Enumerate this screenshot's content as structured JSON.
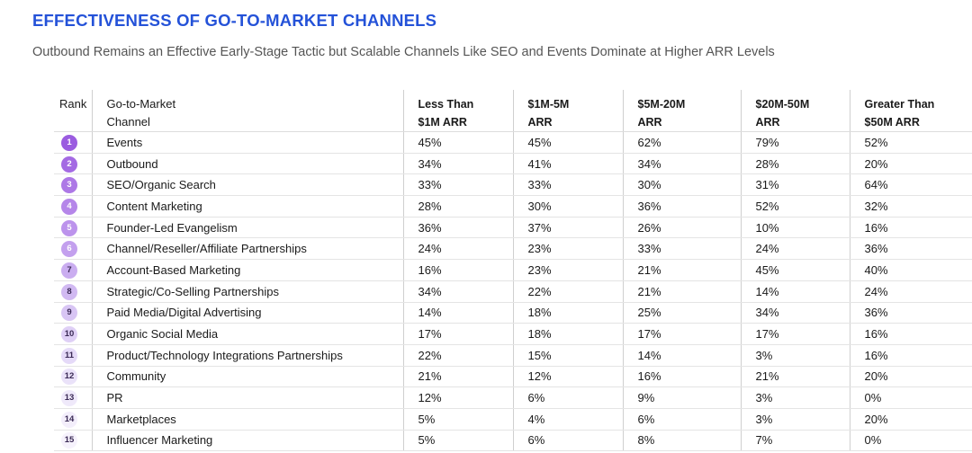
{
  "header": {
    "title": "EFFECTIVENESS OF GO-TO-MARKET CHANNELS",
    "subtitle": "Outbound Remains an Effective Early-Stage Tactic but Scalable Channels Like SEO and Events Dominate at Higher ARR Levels"
  },
  "table": {
    "columns": {
      "rank": "Rank",
      "channel_line1": "Go-to-Market",
      "channel_line2": "Channel",
      "c1_line1": "Less Than",
      "c1_line2": "$1M ARR",
      "c2_line1": "$1M-5M",
      "c2_line2": "ARR",
      "c3_line1": "$5M-20M",
      "c3_line2": "ARR",
      "c4_line1": "$20M-50M",
      "c4_line2": "ARR",
      "c5_line1": "Greater Than",
      "c5_line2": "$50M ARR"
    }
  },
  "chart_data": {
    "type": "table",
    "title": "EFFECTIVENESS OF GO-TO-MARKET CHANNELS",
    "subtitle": "Outbound Remains an Effective Early-Stage Tactic but Scalable Channels Like SEO and Events Dominate at Higher ARR Levels",
    "columns": [
      "Less Than $1M ARR",
      "$1M-5M ARR",
      "$5M-20M ARR",
      "$20M-50M ARR",
      "Greater Than $50M ARR"
    ],
    "rows": [
      {
        "rank": "1",
        "channel": "Events",
        "values": [
          "45%",
          "45%",
          "62%",
          "79%",
          "52%"
        ],
        "badge_color": "#9b5ce0",
        "badge_text_color": "#ffffff"
      },
      {
        "rank": "2",
        "channel": "Outbound",
        "values": [
          "34%",
          "41%",
          "34%",
          "28%",
          "20%"
        ],
        "badge_color": "#a46ae3",
        "badge_text_color": "#ffffff"
      },
      {
        "rank": "3",
        "channel": "SEO/Organic Search",
        "values": [
          "33%",
          "33%",
          "30%",
          "31%",
          "64%"
        ],
        "badge_color": "#ad78e6",
        "badge_text_color": "#ffffff"
      },
      {
        "rank": "4",
        "channel": "Content Marketing",
        "values": [
          "28%",
          "30%",
          "36%",
          "52%",
          "32%"
        ],
        "badge_color": "#b586e9",
        "badge_text_color": "#ffffff"
      },
      {
        "rank": "5",
        "channel": "Founder-Led Evangelism",
        "values": [
          "36%",
          "37%",
          "26%",
          "10%",
          "16%"
        ],
        "badge_color": "#bc93ec",
        "badge_text_color": "#ffffff"
      },
      {
        "rank": "6",
        "channel": "Channel/Reseller/Affiliate Partnerships",
        "values": [
          "24%",
          "23%",
          "33%",
          "24%",
          "36%"
        ],
        "badge_color": "#c3a0ee",
        "badge_text_color": "#ffffff"
      },
      {
        "rank": "7",
        "channel": "Account-Based Marketing",
        "values": [
          "16%",
          "23%",
          "21%",
          "45%",
          "40%"
        ],
        "badge_color": "#caadf0",
        "badge_text_color": "#3a2a55"
      },
      {
        "rank": "8",
        "channel": "Strategic/Co-Selling Partnerships",
        "values": [
          "34%",
          "22%",
          "21%",
          "14%",
          "24%"
        ],
        "badge_color": "#d1b9f2",
        "badge_text_color": "#3a2a55"
      },
      {
        "rank": "9",
        "channel": "Paid Media/Digital Advertising",
        "values": [
          "14%",
          "18%",
          "25%",
          "34%",
          "36%"
        ],
        "badge_color": "#d8c5f4",
        "badge_text_color": "#3a2a55"
      },
      {
        "rank": "10",
        "channel": "Organic Social Media",
        "values": [
          "17%",
          "18%",
          "17%",
          "17%",
          "16%"
        ],
        "badge_color": "#dfd0f6",
        "badge_text_color": "#3a2a55"
      },
      {
        "rank": "11",
        "channel": "Product/Technology Integrations Partnerships",
        "values": [
          "22%",
          "15%",
          "14%",
          "3%",
          "16%"
        ],
        "badge_color": "#e5daf8",
        "badge_text_color": "#3a2a55"
      },
      {
        "rank": "12",
        "channel": "Community",
        "values": [
          "21%",
          "12%",
          "16%",
          "21%",
          "20%"
        ],
        "badge_color": "#eae2f9",
        "badge_text_color": "#3a2a55"
      },
      {
        "rank": "13",
        "channel": "PR",
        "values": [
          "12%",
          "6%",
          "9%",
          "3%",
          "0%"
        ],
        "badge_color": "#efe9fa",
        "badge_text_color": "#3a2a55"
      },
      {
        "rank": "14",
        "channel": "Marketplaces",
        "values": [
          "5%",
          "4%",
          "6%",
          "3%",
          "20%"
        ],
        "badge_color": "#f3eefb",
        "badge_text_color": "#3a2a55"
      },
      {
        "rank": "15",
        "channel": "Influencer Marketing",
        "values": [
          "5%",
          "6%",
          "8%",
          "7%",
          "0%"
        ],
        "badge_color": "#f6f2fc",
        "badge_text_color": "#3a2a55"
      }
    ]
  }
}
